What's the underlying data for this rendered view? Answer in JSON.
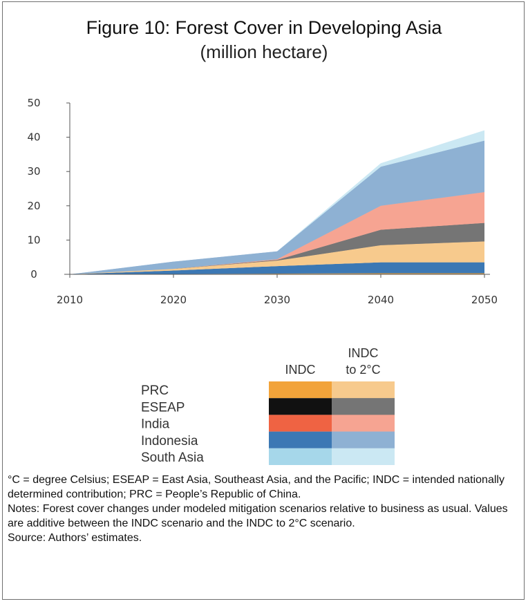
{
  "chart_data": {
    "type": "area",
    "title": "Figure 10: Forest Cover in Developing Asia",
    "subtitle": "(million hectare)",
    "x": [
      2010,
      2020,
      2030,
      2040,
      2050
    ],
    "y_ticks": [
      0,
      10,
      20,
      30,
      40,
      50
    ],
    "ylim": [
      0,
      50
    ],
    "stacked": true,
    "grid": false,
    "legend_position": "below-chart",
    "scenarios": [
      "INDC",
      "INDC to 2°C"
    ],
    "series": [
      {
        "name": "PRC",
        "color": "#f2a33a",
        "indc": [
          0,
          0.1,
          0.2,
          0.3,
          0.3
        ],
        "indc_2c": [
          0,
          0.1,
          0.4,
          0.5,
          0.5
        ]
      },
      {
        "name": "Indonesia",
        "color": "#3c78b4",
        "indc": [
          0,
          1,
          2.2,
          3.2,
          3.2
        ],
        "indc_2c": [
          0,
          0,
          0,
          0,
          0
        ]
      },
      {
        "name": "PRC",
        "color": "#f2a33a",
        "indc": [
          0,
          0,
          0,
          0,
          0
        ],
        "indc_2c": [
          0,
          0.4,
          1.2,
          4.5,
          5.6
        ]
      },
      {
        "name": "ESEAP",
        "color": "#111111",
        "indc": [
          0,
          0,
          0,
          0,
          0
        ],
        "indc_2c": [
          0,
          0,
          0.2,
          4.5,
          5.4
        ]
      },
      {
        "name": "India",
        "color": "#ef6343",
        "indc": [
          0,
          0,
          0,
          0,
          0
        ],
        "indc_2c": [
          0,
          0,
          0.2,
          7,
          9
        ]
      },
      {
        "name": "Indonesia",
        "color": "#3c78b4",
        "indc": [
          0,
          0,
          0,
          0,
          0
        ],
        "indc_2c": [
          0,
          2.1,
          2.3,
          11.4,
          15
        ]
      },
      {
        "name": "South Asia",
        "color": "#a6d7ea",
        "indc": [
          0,
          0,
          0,
          0,
          0
        ],
        "indc_2c": [
          0,
          0,
          0,
          1,
          3
        ]
      }
    ]
  },
  "legend": {
    "head_indc": "INDC",
    "head_2c_line1": "INDC",
    "head_2c_line2": "to 2°C",
    "items": [
      {
        "label": "PRC",
        "color": "#f2a33a"
      },
      {
        "label": "ESEAP",
        "color": "#111111"
      },
      {
        "label": "India",
        "color": "#ef6343"
      },
      {
        "label": "Indonesia",
        "color": "#3c78b4"
      },
      {
        "label": "South Asia",
        "color": "#a6d7ea"
      }
    ]
  },
  "notes": {
    "abbreviations": "°C = degree Celsius; ESEAP = East Asia, Southeast Asia, and the Pacific; INDC = intended nationally determined contribution; PRC = People’s Republic of China.",
    "notes": "Notes: Forest cover changes under modeled mitigation scenarios relative to business as usual. Values are additive between the INDC scenario and the INDC to 2°C scenario.",
    "source": "Source: Authors’ estimates."
  }
}
